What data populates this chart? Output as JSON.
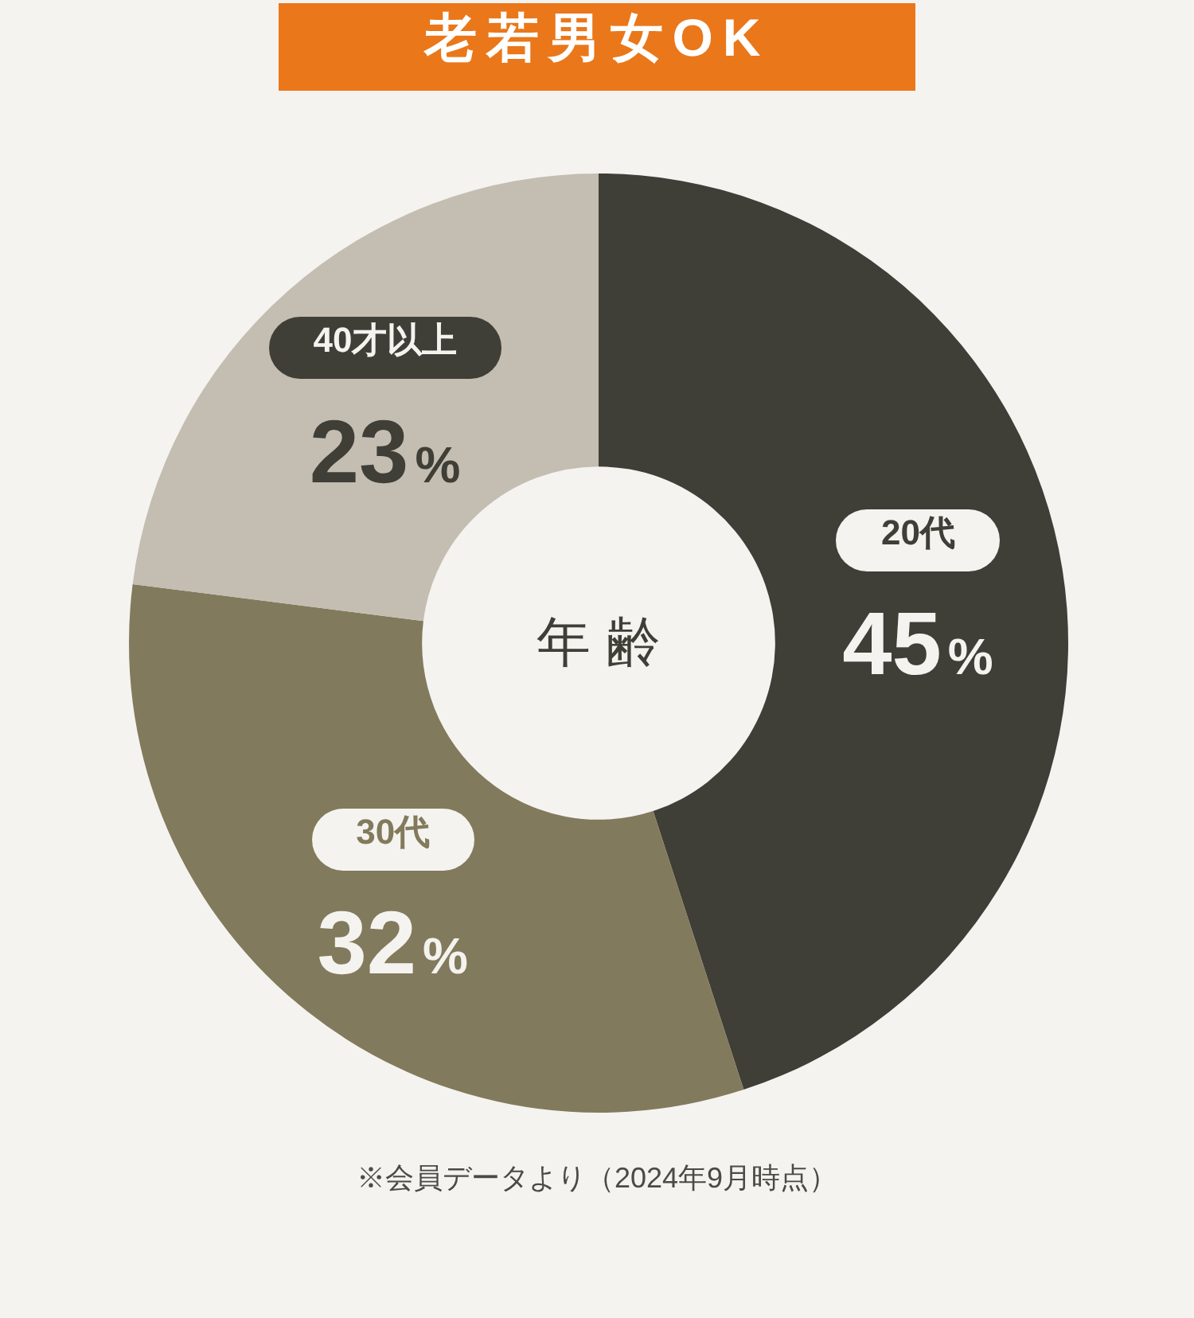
{
  "chart_data": {
    "type": "donut",
    "title": "老若男女OK",
    "categories": [
      "20代",
      "30代",
      "40才以上"
    ],
    "values": [
      45,
      32,
      23
    ],
    "colors": [
      "#3f3e37",
      "#827a5c",
      "#c4bdb1"
    ],
    "value_labels": [
      "45%",
      "32%",
      "23%"
    ],
    "annotations": [
      "年齢",
      "※会員データより（2024年9月時点）"
    ]
  }
}
